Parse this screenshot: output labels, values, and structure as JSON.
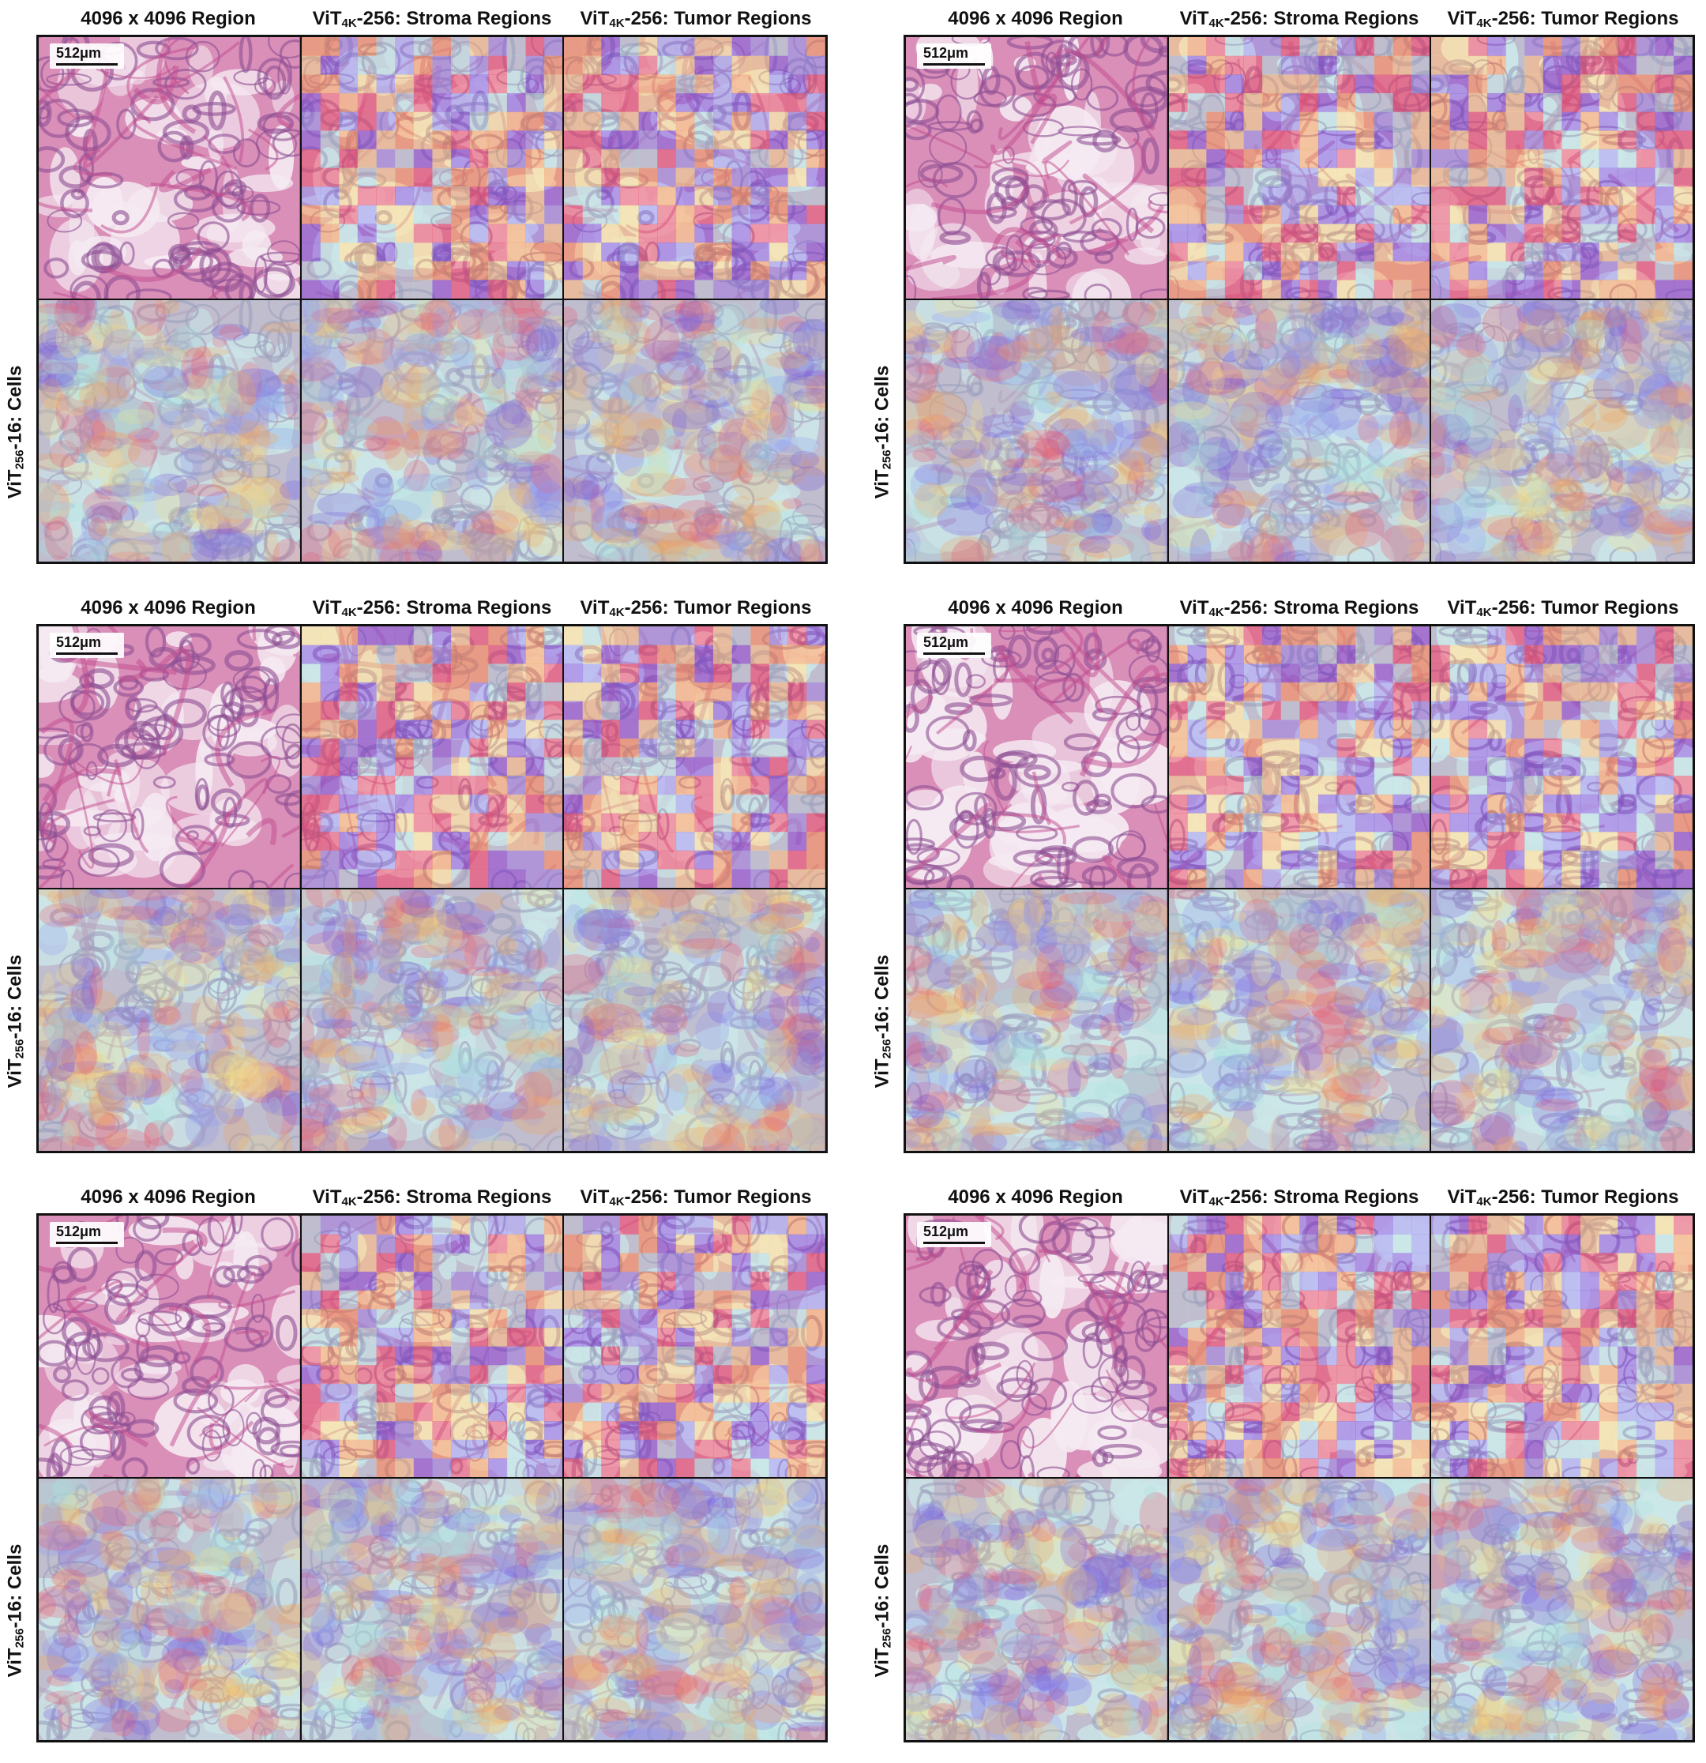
{
  "panels": [
    {
      "col_titles": [
        "4096 x 4096 Region",
        "ViT",
        "4K",
        "-256: Stroma Regions",
        "ViT",
        "4K",
        "-256: Tumor Regions"
      ],
      "row_label": {
        "pre": "ViT",
        "sub": "256",
        "post": "-16: Cells"
      },
      "scalebar": "512μm"
    },
    {
      "col_titles": [
        "4096 x 4096 Region",
        "ViT",
        "4K",
        "-256: Stroma Regions",
        "ViT",
        "4K",
        "-256: Tumor Regions"
      ],
      "row_label": {
        "pre": "ViT",
        "sub": "256",
        "post": "-16: Cells"
      },
      "scalebar": "512μm"
    },
    {
      "col_titles": [
        "4096 x 4096 Region",
        "ViT",
        "4K",
        "-256: Stroma Regions",
        "ViT",
        "4K",
        "-256: Tumor Regions"
      ],
      "row_label": {
        "pre": "ViT",
        "sub": "256",
        "post": "-16: Cells"
      },
      "scalebar": "512μm"
    },
    {
      "col_titles": [
        "4096 x 4096 Region",
        "ViT",
        "4K",
        "-256: Stroma Regions",
        "ViT",
        "4K",
        "-256: Tumor Regions"
      ],
      "row_label": {
        "pre": "ViT",
        "sub": "256",
        "post": "-16: Cells"
      },
      "scalebar": "512μm"
    },
    {
      "col_titles": [
        "4096 x 4096 Region",
        "ViT",
        "4K",
        "-256: Stroma Regions",
        "ViT",
        "4K",
        "-256: Tumor Regions"
      ],
      "row_label": {
        "pre": "ViT",
        "sub": "256",
        "post": "-16: Cells"
      },
      "scalebar": "512μm"
    },
    {
      "col_titles": [
        "4096 x 4096 Region",
        "ViT",
        "4K",
        "-256: Stroma Regions",
        "ViT",
        "4K",
        "-256: Tumor Regions"
      ],
      "row_label": {
        "pre": "ViT",
        "sub": "256",
        "post": "-16: Cells"
      },
      "scalebar": "512μm"
    }
  ],
  "colors": {
    "tissue_pink": "#d98fb8",
    "tissue_purple": "#8e4f93",
    "fat_white": "#f5eaf2",
    "heat_red": "#e8596f",
    "heat_orange": "#f2a65c",
    "heat_yellow": "#f3e08a",
    "heat_cyan": "#a9e3e0",
    "heat_blue": "#8f9cf0",
    "heat_violet": "#7a5fe0"
  }
}
